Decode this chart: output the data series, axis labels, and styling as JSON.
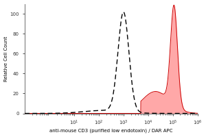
{
  "title": "",
  "xlabel": "anti-mouse CD3 (purified low endotoxin) / DAR APC",
  "ylabel": "Relative Cell Count",
  "xlim": [
    0.1,
    1000000
  ],
  "ylim": [
    0,
    110
  ],
  "yticks": [
    0,
    20,
    40,
    60,
    80,
    100
  ],
  "background_color": "#ffffff",
  "dashed_peak_log": 3.0,
  "dashed_sigma": 0.22,
  "dashed_height": 100,
  "dashed_base_log": 2.2,
  "dashed_base_sigma": 0.8,
  "dashed_base_height": 3.0,
  "red_peak_log": 5.05,
  "red_sigma": 0.14,
  "red_height": 100,
  "red_shoulder_log": 4.3,
  "red_shoulder_sigma": 0.55,
  "red_shoulder_height": 22,
  "red_start_log": 3.7,
  "red_color_fill": "#ff9999",
  "red_color_line": "#cc0000"
}
